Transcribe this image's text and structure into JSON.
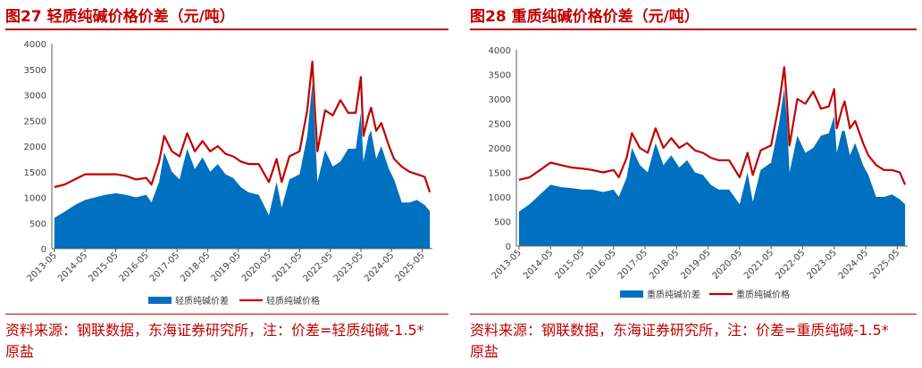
{
  "charts": [
    {
      "title": "图27 轻质纯碱价格价差（元/吨）",
      "source_line1": "资料来源：钢联数据，东海证券研究所，注：价差=轻质纯碱-1.5*",
      "source_line2": "原盐"
    },
    {
      "title": "图28 重质纯碱价格价差（元/吨）",
      "source_line1": "资料来源：钢联数据，东海证券研究所，注：价差=重质纯碱-1.5*",
      "source_line2": "原盐"
    }
  ],
  "colors": {
    "spread": "#0070C0",
    "price": "#C00000",
    "text": "#C00000",
    "axis": "#595959"
  },
  "chart_data": [
    {
      "type": "area+line",
      "xlabel": "",
      "ylabel": "",
      "ylim": [
        0,
        4000
      ],
      "yticks": [
        0,
        500,
        1000,
        1500,
        2000,
        2500,
        3000,
        3500,
        4000
      ],
      "xticks": [
        "2013-05",
        "2014-05",
        "2015-05",
        "2016-05",
        "2017-05",
        "2018-05",
        "2019-05",
        "2020-05",
        "2021-05",
        "2022-05",
        "2023-05",
        "2024-05",
        "2025-05"
      ],
      "legend_position": "bottom",
      "series": [
        {
          "name": "轻质纯碱价差",
          "type": "area",
          "color": "#0070C0",
          "x": [
            "2013-05",
            "2013-09",
            "2014-01",
            "2014-05",
            "2014-09",
            "2015-01",
            "2015-05",
            "2015-09",
            "2016-01",
            "2016-05",
            "2016-07",
            "2016-10",
            "2016-12",
            "2017-03",
            "2017-06",
            "2017-09",
            "2017-12",
            "2018-03",
            "2018-06",
            "2018-09",
            "2018-12",
            "2019-03",
            "2019-06",
            "2019-09",
            "2020-01",
            "2020-05",
            "2020-08",
            "2020-10",
            "2021-01",
            "2021-05",
            "2021-08",
            "2021-10",
            "2021-11",
            "2021-12",
            "2022-03",
            "2022-06",
            "2022-09",
            "2022-12",
            "2023-03",
            "2023-05",
            "2023-06",
            "2023-08",
            "2023-09",
            "2023-11",
            "2024-01",
            "2024-04",
            "2024-06",
            "2024-09",
            "2024-12",
            "2025-03",
            "2025-06",
            "2025-08"
          ],
          "values": [
            600,
            720,
            850,
            950,
            1000,
            1050,
            1080,
            1050,
            1000,
            1050,
            900,
            1300,
            1880,
            1500,
            1350,
            1950,
            1550,
            1780,
            1500,
            1650,
            1450,
            1380,
            1200,
            1100,
            1050,
            650,
            1300,
            800,
            1350,
            1450,
            2200,
            3220,
            2300,
            1300,
            1920,
            1600,
            1700,
            1950,
            1950,
            2650,
            1700,
            2200,
            2300,
            1750,
            2000,
            1550,
            1350,
            900,
            900,
            950,
            850,
            730
          ]
        },
        {
          "name": "轻质纯碱价格",
          "type": "line",
          "color": "#C00000",
          "x": [
            "2013-05",
            "2013-09",
            "2014-01",
            "2014-05",
            "2014-09",
            "2015-01",
            "2015-05",
            "2015-09",
            "2016-01",
            "2016-05",
            "2016-07",
            "2016-10",
            "2016-12",
            "2017-03",
            "2017-06",
            "2017-09",
            "2017-12",
            "2018-03",
            "2018-06",
            "2018-09",
            "2018-12",
            "2019-03",
            "2019-06",
            "2019-09",
            "2020-01",
            "2020-05",
            "2020-08",
            "2020-10",
            "2021-01",
            "2021-05",
            "2021-08",
            "2021-10",
            "2021-11",
            "2021-12",
            "2022-03",
            "2022-06",
            "2022-09",
            "2022-12",
            "2023-03",
            "2023-05",
            "2023-06",
            "2023-08",
            "2023-09",
            "2023-11",
            "2024-01",
            "2024-04",
            "2024-06",
            "2024-09",
            "2024-12",
            "2025-03",
            "2025-06",
            "2025-08"
          ],
          "values": [
            1200,
            1250,
            1350,
            1450,
            1450,
            1450,
            1450,
            1420,
            1350,
            1380,
            1250,
            1700,
            2200,
            1900,
            1800,
            2250,
            1900,
            2100,
            1900,
            2000,
            1850,
            1800,
            1700,
            1650,
            1650,
            1300,
            1750,
            1300,
            1800,
            1900,
            2700,
            3650,
            2700,
            1900,
            2700,
            2600,
            2900,
            2650,
            2650,
            3350,
            2200,
            2600,
            2750,
            2300,
            2450,
            2000,
            1750,
            1600,
            1500,
            1450,
            1400,
            1100
          ]
        }
      ]
    },
    {
      "type": "area+line",
      "xlabel": "",
      "ylabel": "",
      "ylim": [
        0,
        4000
      ],
      "yticks": [
        0,
        500,
        1000,
        1500,
        2000,
        2500,
        3000,
        3500,
        4000
      ],
      "xticks": [
        "2013-05",
        "2014-05",
        "2015-05",
        "2016-05",
        "2017-05",
        "2018-05",
        "2019-05",
        "2020-05",
        "2021-05",
        "2022-05",
        "2023-05",
        "2024-05",
        "2025-05"
      ],
      "legend_position": "bottom",
      "series": [
        {
          "name": "重质纯碱价差",
          "type": "area",
          "color": "#0070C0",
          "x": [
            "2013-05",
            "2013-09",
            "2014-01",
            "2014-05",
            "2014-09",
            "2015-01",
            "2015-05",
            "2015-09",
            "2016-01",
            "2016-05",
            "2016-07",
            "2016-10",
            "2016-12",
            "2017-03",
            "2017-06",
            "2017-09",
            "2017-12",
            "2018-03",
            "2018-06",
            "2018-09",
            "2018-12",
            "2019-03",
            "2019-06",
            "2019-09",
            "2020-01",
            "2020-05",
            "2020-08",
            "2020-10",
            "2021-01",
            "2021-05",
            "2021-08",
            "2021-10",
            "2021-11",
            "2021-12",
            "2022-03",
            "2022-06",
            "2022-09",
            "2022-12",
            "2023-03",
            "2023-05",
            "2023-06",
            "2023-08",
            "2023-09",
            "2023-11",
            "2024-01",
            "2024-04",
            "2024-06",
            "2024-09",
            "2024-12",
            "2025-03",
            "2025-06",
            "2025-08"
          ],
          "values": [
            700,
            850,
            1050,
            1250,
            1200,
            1180,
            1150,
            1150,
            1100,
            1150,
            1000,
            1400,
            2000,
            1650,
            1500,
            2100,
            1650,
            1850,
            1600,
            1750,
            1500,
            1450,
            1250,
            1150,
            1150,
            850,
            1500,
            900,
            1550,
            1700,
            2500,
            3220,
            2600,
            1500,
            2250,
            1900,
            2000,
            2250,
            2300,
            2650,
            1900,
            2350,
            2350,
            1850,
            2100,
            1650,
            1450,
            1000,
            1000,
            1050,
            950,
            850
          ]
        },
        {
          "name": "重质纯碱价格",
          "type": "line",
          "color": "#C00000",
          "x": [
            "2013-05",
            "2013-09",
            "2014-01",
            "2014-05",
            "2014-09",
            "2015-01",
            "2015-05",
            "2015-09",
            "2016-01",
            "2016-05",
            "2016-07",
            "2016-10",
            "2016-12",
            "2017-03",
            "2017-06",
            "2017-09",
            "2017-12",
            "2018-03",
            "2018-06",
            "2018-09",
            "2018-12",
            "2019-03",
            "2019-06",
            "2019-09",
            "2020-01",
            "2020-05",
            "2020-08",
            "2020-10",
            "2021-01",
            "2021-05",
            "2021-08",
            "2021-10",
            "2021-11",
            "2021-12",
            "2022-03",
            "2022-06",
            "2022-09",
            "2022-12",
            "2023-03",
            "2023-05",
            "2023-06",
            "2023-08",
            "2023-09",
            "2023-11",
            "2024-01",
            "2024-04",
            "2024-06",
            "2024-09",
            "2024-12",
            "2025-03",
            "2025-06",
            "2025-08"
          ],
          "values": [
            1350,
            1400,
            1550,
            1700,
            1650,
            1600,
            1580,
            1550,
            1500,
            1550,
            1400,
            1800,
            2300,
            2000,
            1900,
            2400,
            2000,
            2200,
            2000,
            2100,
            1950,
            1900,
            1800,
            1750,
            1750,
            1400,
            1900,
            1450,
            1950,
            2050,
            2900,
            3650,
            2950,
            2050,
            3000,
            2900,
            3150,
            2800,
            2850,
            3200,
            2400,
            2800,
            2950,
            2400,
            2550,
            2100,
            1850,
            1650,
            1550,
            1550,
            1500,
            1250
          ]
        }
      ]
    }
  ]
}
